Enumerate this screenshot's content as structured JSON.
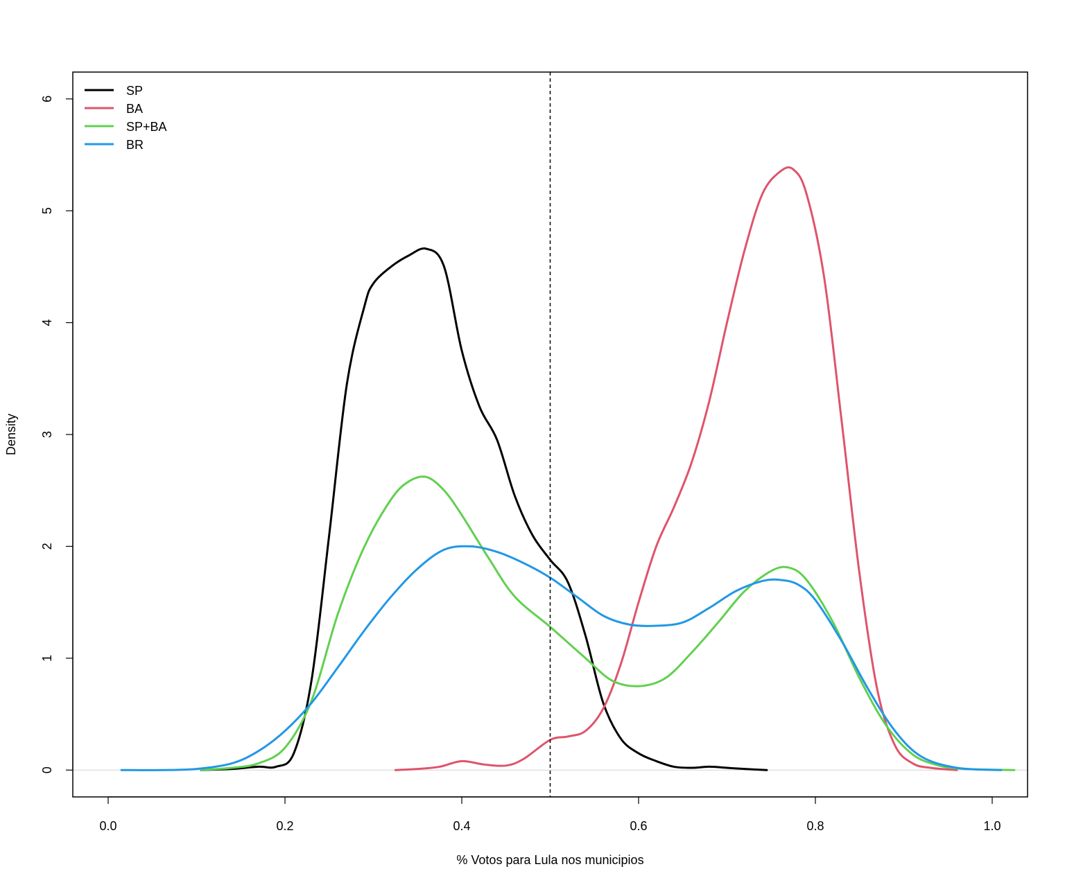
{
  "chart_data": {
    "type": "line",
    "title": "",
    "xlabel": "% Votos para Lula nos municipios",
    "ylabel": "Density",
    "xlim": [
      -0.04,
      1.04
    ],
    "ylim": [
      -0.24,
      6.24
    ],
    "x_ticks": [
      0.0,
      0.2,
      0.4,
      0.6,
      0.8,
      1.0
    ],
    "x_tick_labels": [
      "0.0",
      "0.2",
      "0.4",
      "0.6",
      "0.8",
      "1.0"
    ],
    "y_ticks": [
      0,
      1,
      2,
      3,
      4,
      5,
      6
    ],
    "y_tick_labels": [
      "0",
      "1",
      "2",
      "3",
      "4",
      "5",
      "6"
    ],
    "grid": false,
    "legend_position": "top-left",
    "reference_line": {
      "x": 0.5,
      "style": "dashed",
      "color": "#000000"
    },
    "baseline": {
      "y": 0,
      "color": "#d3d3d3"
    },
    "series": [
      {
        "name": "SP",
        "color": "#000000",
        "x": [
          0.105,
          0.14,
          0.17,
          0.19,
          0.21,
          0.23,
          0.25,
          0.27,
          0.29,
          0.3,
          0.32,
          0.34,
          0.36,
          0.38,
          0.4,
          0.42,
          0.44,
          0.46,
          0.48,
          0.5,
          0.52,
          0.54,
          0.56,
          0.58,
          0.6,
          0.62,
          0.64,
          0.66,
          0.68,
          0.7,
          0.72,
          0.745
        ],
        "y": [
          0.0,
          0.01,
          0.03,
          0.03,
          0.15,
          0.8,
          2.1,
          3.45,
          4.15,
          4.35,
          4.5,
          4.6,
          4.66,
          4.5,
          3.75,
          3.25,
          2.95,
          2.45,
          2.1,
          1.88,
          1.68,
          1.2,
          0.6,
          0.28,
          0.15,
          0.08,
          0.03,
          0.02,
          0.03,
          0.02,
          0.01,
          0.0
        ]
      },
      {
        "name": "BA",
        "color": "#df536b",
        "x": [
          0.325,
          0.35,
          0.375,
          0.4,
          0.425,
          0.45,
          0.47,
          0.5,
          0.52,
          0.54,
          0.56,
          0.58,
          0.6,
          0.62,
          0.64,
          0.66,
          0.68,
          0.7,
          0.72,
          0.74,
          0.76,
          0.775,
          0.79,
          0.81,
          0.83,
          0.85,
          0.87,
          0.89,
          0.91,
          0.93,
          0.96
        ],
        "y": [
          0.0,
          0.01,
          0.03,
          0.08,
          0.05,
          0.04,
          0.1,
          0.27,
          0.3,
          0.35,
          0.55,
          0.95,
          1.5,
          2.0,
          2.35,
          2.75,
          3.3,
          4.0,
          4.65,
          5.15,
          5.35,
          5.37,
          5.15,
          4.4,
          3.1,
          1.75,
          0.72,
          0.22,
          0.06,
          0.02,
          0.0
        ]
      },
      {
        "name": "SP+BA",
        "color": "#61d04f",
        "x": [
          0.105,
          0.14,
          0.17,
          0.2,
          0.23,
          0.26,
          0.29,
          0.32,
          0.34,
          0.36,
          0.38,
          0.4,
          0.43,
          0.46,
          0.5,
          0.54,
          0.57,
          0.6,
          0.63,
          0.66,
          0.69,
          0.72,
          0.75,
          0.77,
          0.79,
          0.82,
          0.85,
          0.88,
          0.91,
          0.94,
          0.97,
          1.025
        ],
        "y": [
          0.0,
          0.02,
          0.06,
          0.2,
          0.62,
          1.4,
          2.0,
          2.42,
          2.58,
          2.62,
          2.5,
          2.28,
          1.9,
          1.55,
          1.28,
          1.0,
          0.8,
          0.75,
          0.82,
          1.05,
          1.32,
          1.6,
          1.78,
          1.81,
          1.7,
          1.32,
          0.82,
          0.4,
          0.14,
          0.04,
          0.01,
          0.0
        ]
      },
      {
        "name": "BR",
        "color": "#2297e6",
        "x": [
          0.015,
          0.06,
          0.1,
          0.14,
          0.17,
          0.2,
          0.23,
          0.26,
          0.29,
          0.32,
          0.35,
          0.38,
          0.41,
          0.44,
          0.47,
          0.5,
          0.53,
          0.56,
          0.59,
          0.62,
          0.65,
          0.68,
          0.71,
          0.74,
          0.76,
          0.78,
          0.8,
          0.83,
          0.86,
          0.89,
          0.92,
          0.96,
          1.01
        ],
        "y": [
          0.0,
          0.0,
          0.01,
          0.06,
          0.17,
          0.35,
          0.6,
          0.92,
          1.25,
          1.55,
          1.8,
          1.97,
          2.0,
          1.95,
          1.85,
          1.72,
          1.55,
          1.38,
          1.3,
          1.29,
          1.32,
          1.45,
          1.6,
          1.69,
          1.7,
          1.66,
          1.52,
          1.15,
          0.72,
          0.35,
          0.12,
          0.02,
          0.0
        ]
      }
    ]
  }
}
